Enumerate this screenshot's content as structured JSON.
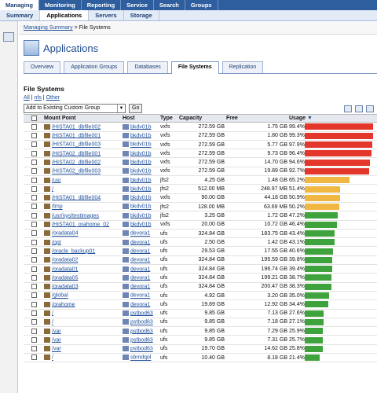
{
  "topnav": [
    "Managing",
    "Monitoring",
    "Reporting",
    "Service",
    "Search",
    "Groups"
  ],
  "subnav": [
    "Summary",
    "Applications",
    "Servers",
    "Storage"
  ],
  "breadcrumb": {
    "link": "Managing Summary",
    "sep": ">",
    "current": "File Systems"
  },
  "app_title": "Applications",
  "tabs": [
    "Overview",
    "Application Groups",
    "Databases",
    "File Systems",
    "Replication"
  ],
  "active_tab": "File Systems",
  "section_title": "File Systems",
  "filters": {
    "all": "All",
    "sep1": " | ",
    "nfs": "nfs",
    "sep2": " | ",
    "other": "Other"
  },
  "group_select": "Add to Existing Custom Group",
  "go_label": "Go",
  "headers": {
    "mount": "Mount Point",
    "host": "Host",
    "type": "Type",
    "capacity": "Capacity",
    "free": "Free",
    "usage": "Usage"
  },
  "colors": {
    "red": "#e4372b",
    "yellow": "#f0b742",
    "green": "#3ea33c"
  },
  "rows": [
    {
      "mount": "/HISTA01_dbfile002",
      "host": "bkdv01b",
      "type": "vxfs",
      "capacity": "272.59 GB",
      "free": "1.75 GB",
      "usage": "99.4%",
      "pct": 99.4,
      "color": "red"
    },
    {
      "mount": "/HISTA01_dbfile001",
      "host": "bkdv01b",
      "type": "vxfs",
      "capacity": "272.59 GB",
      "free": "1.80 GB",
      "usage": "99.3%",
      "pct": 99.3,
      "color": "red"
    },
    {
      "mount": "/HISTA01_dbfile003",
      "host": "bkdv01b",
      "type": "vxfs",
      "capacity": "272.59 GB",
      "free": "5.77 GB",
      "usage": "97.9%",
      "pct": 97.9,
      "color": "red"
    },
    {
      "mount": "/HISTA02_dbfile001",
      "host": "bkdv01b",
      "type": "vxfs",
      "capacity": "272.59 GB",
      "free": "9.73 GB",
      "usage": "96.4%",
      "pct": 96.4,
      "color": "red"
    },
    {
      "mount": "/HISTA02_dbfile002",
      "host": "bkdv01b",
      "type": "vxfs",
      "capacity": "272.59 GB",
      "free": "14.70 GB",
      "usage": "94.6%",
      "pct": 94.6,
      "color": "red"
    },
    {
      "mount": "/HISTA02_dbfile003",
      "host": "bkdv01b",
      "type": "vxfs",
      "capacity": "272.59 GB",
      "free": "19.89 GB",
      "usage": "92.7%",
      "pct": 92.7,
      "color": "red"
    },
    {
      "mount": "/usr",
      "host": "bkdv01b",
      "type": "jfs2",
      "capacity": "4.25 GB",
      "free": "1.48 GB",
      "usage": "65.2%",
      "pct": 65.2,
      "color": "yellow"
    },
    {
      "mount": "/",
      "host": "bkdv01b",
      "type": "jfs2",
      "capacity": "512.00 MB",
      "free": "248.97 MB",
      "usage": "51.4%",
      "pct": 51.4,
      "color": "yellow"
    },
    {
      "mount": "/HISTA01_dbfile004",
      "host": "bkdv01b",
      "type": "vxfs",
      "capacity": "90.00 GB",
      "free": "44.18 GB",
      "usage": "50.9%",
      "pct": 50.9,
      "color": "yellow"
    },
    {
      "mount": "/tmp",
      "host": "bkdv01b",
      "type": "jfs2",
      "capacity": "128.00 MB",
      "free": "63.69 MB",
      "usage": "50.2%",
      "pct": 50.2,
      "color": "yellow"
    },
    {
      "mount": "/usr/sys/testimages",
      "host": "bkdv01b",
      "type": "jfs2",
      "capacity": "3.25 GB",
      "free": "1.72 GB",
      "usage": "47.2%",
      "pct": 47.2,
      "color": "green"
    },
    {
      "mount": "/HISTA01_orahome_02",
      "host": "bkdv01b",
      "type": "vxfs",
      "capacity": "20.00 GB",
      "free": "10.72 GB",
      "usage": "46.4%",
      "pct": 46.4,
      "color": "green"
    },
    {
      "mount": "/oradata04",
      "host": "devora1",
      "type": "ufs",
      "capacity": "324.84 GB",
      "free": "183.75 GB",
      "usage": "43.4%",
      "pct": 43.4,
      "color": "green"
    },
    {
      "mount": "/opt",
      "host": "devora1",
      "type": "ufs",
      "capacity": "2.50 GB",
      "free": "1.42 GB",
      "usage": "43.1%",
      "pct": 43.1,
      "color": "green"
    },
    {
      "mount": "/oracle_backup01",
      "host": "devora1",
      "type": "ufs",
      "capacity": "29.53 GB",
      "free": "17.55 GB",
      "usage": "40.6%",
      "pct": 40.6,
      "color": "green"
    },
    {
      "mount": "/oradata02",
      "host": "devora1",
      "type": "ufs",
      "capacity": "324.84 GB",
      "free": "195.59 GB",
      "usage": "39.8%",
      "pct": 39.8,
      "color": "green"
    },
    {
      "mount": "/oradata01",
      "host": "devora1",
      "type": "ufs",
      "capacity": "324.84 GB",
      "free": "196.74 GB",
      "usage": "39.4%",
      "pct": 39.4,
      "color": "green"
    },
    {
      "mount": "/oradata05",
      "host": "devora1",
      "type": "ufs",
      "capacity": "324.84 GB",
      "free": "199.21 GB",
      "usage": "38.7%",
      "pct": 38.7,
      "color": "green"
    },
    {
      "mount": "/oradata03",
      "host": "devora1",
      "type": "ufs",
      "capacity": "324.84 GB",
      "free": "200.47 GB",
      "usage": "38.3%",
      "pct": 38.3,
      "color": "green"
    },
    {
      "mount": "/global",
      "host": "devora1",
      "type": "ufs",
      "capacity": "4.92 GB",
      "free": "3.20 GB",
      "usage": "35.0%",
      "pct": 35.0,
      "color": "green"
    },
    {
      "mount": "/orahome",
      "host": "devora1",
      "type": "ufs",
      "capacity": "19.69 GB",
      "free": "12.92 GB",
      "usage": "34.4%",
      "pct": 34.4,
      "color": "green"
    },
    {
      "mount": "/",
      "host": "pstbod63",
      "type": "ufs",
      "capacity": "9.85 GB",
      "free": "7.13 GB",
      "usage": "27.6%",
      "pct": 27.6,
      "color": "green"
    },
    {
      "mount": "/",
      "host": "pstbod63",
      "type": "ufs",
      "capacity": "9.85 GB",
      "free": "7.18 GB",
      "usage": "27.1%",
      "pct": 27.1,
      "color": "green"
    },
    {
      "mount": "/var",
      "host": "pstbod63",
      "type": "ufs",
      "capacity": "9.85 GB",
      "free": "7.29 GB",
      "usage": "25.9%",
      "pct": 25.9,
      "color": "green"
    },
    {
      "mount": "/var",
      "host": "pstbod63",
      "type": "ufs",
      "capacity": "9.85 GB",
      "free": "7.31 GB",
      "usage": "25.7%",
      "pct": 25.7,
      "color": "green"
    },
    {
      "mount": "/var",
      "host": "pstbod63",
      "type": "ufs",
      "capacity": "19.70 GB",
      "free": "14.62 GB",
      "usage": "25.8%",
      "pct": 25.8,
      "color": "green"
    },
    {
      "mount": "/",
      "host": "sbmdqol",
      "type": "ufs",
      "capacity": "10.40 GB",
      "free": "8.18 GB",
      "usage": "21.4%",
      "pct": 21.4,
      "color": "green"
    }
  ]
}
